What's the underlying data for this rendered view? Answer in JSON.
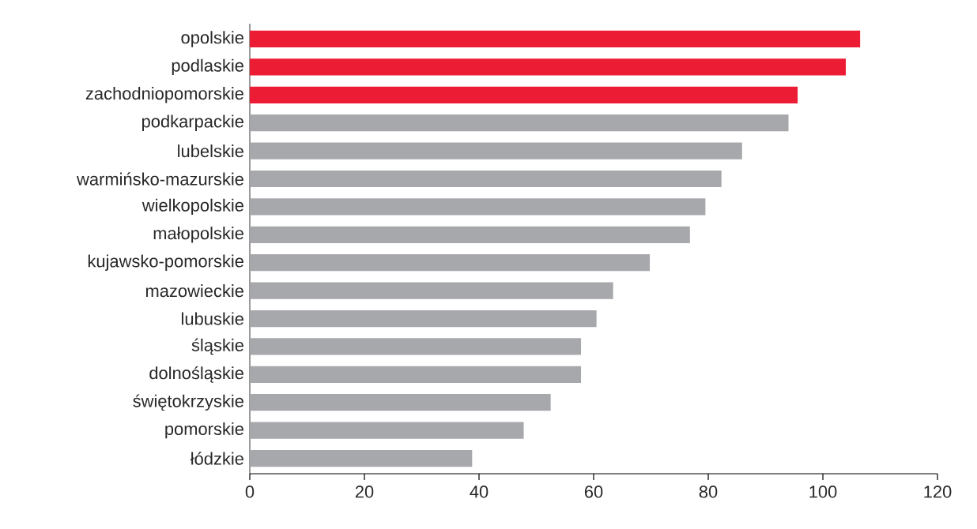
{
  "chart_data": {
    "type": "bar",
    "orientation": "horizontal",
    "categories": [
      "opolskie",
      "podlaskie",
      "zachodniopomorskie",
      "podkarpackie",
      "lubelskie",
      "warmińsko-mazurskie",
      "wielkopolskie",
      "małopolskie",
      "kujawsko-pomorskie",
      "mazowieckie",
      "lubuskie",
      "śląskie",
      "dolnośląskie",
      "świętokrzyskie",
      "pomorskie",
      "łódzkie"
    ],
    "values": [
      106.5,
      104.0,
      95.6,
      94.0,
      85.9,
      82.3,
      79.5,
      76.8,
      69.8,
      63.4,
      60.5,
      57.8,
      57.8,
      52.5,
      47.8,
      38.8
    ],
    "colors": [
      "#ed1c35",
      "#ed1c35",
      "#ed1c35",
      "#a7a8ac",
      "#a7a8ac",
      "#a7a8ac",
      "#a7a8ac",
      "#a7a8ac",
      "#a7a8ac",
      "#a7a8ac",
      "#a7a8ac",
      "#a7a8ac",
      "#a7a8ac",
      "#a7a8ac",
      "#a7a8ac",
      "#a7a8ac"
    ],
    "xlim": [
      0,
      120
    ],
    "xticks": [
      0,
      20,
      40,
      60,
      80,
      100,
      120
    ]
  }
}
